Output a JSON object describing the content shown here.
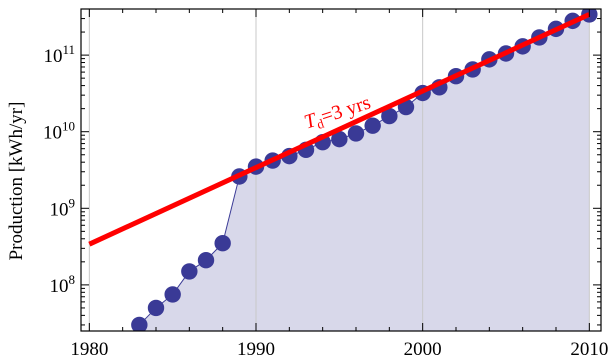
{
  "chart_data": {
    "type": "line",
    "title": "",
    "xlabel": "",
    "ylabel": "Production [kWh/yr]",
    "xlim": [
      1979.5,
      2010.7
    ],
    "ylim": [
      25000000,
      400000000000
    ],
    "y_scale": "log",
    "grid": "vertical lines at 1990 and 2000",
    "x_ticks": [
      {
        "value": 1980,
        "label": "1980"
      },
      {
        "value": 1990,
        "label": "1990"
      },
      {
        "value": 2000,
        "label": "2000"
      },
      {
        "value": 2010,
        "label": "2010"
      }
    ],
    "y_ticks": [
      {
        "value": 100000000,
        "base": "10",
        "exp": "8"
      },
      {
        "value": 1000000000,
        "base": "10",
        "exp": "9"
      },
      {
        "value": 10000000000,
        "base": "10",
        "exp": "10"
      },
      {
        "value": 100000000000,
        "base": "10",
        "exp": "11"
      }
    ],
    "series": [
      {
        "type": "line-markers-filled-area",
        "color": "#3a3a96",
        "fill": "#d8d8ea",
        "x": [
          1983,
          1984,
          1985,
          1986,
          1987,
          1988,
          1989,
          1990,
          1991,
          1992,
          1993,
          1994,
          1995,
          1996,
          1997,
          1998,
          1999,
          2000,
          2001,
          2002,
          2003,
          2004,
          2005,
          2006,
          2007,
          2008,
          2009,
          2010
        ],
        "y": [
          30000000,
          50000000,
          75000000,
          150000000,
          210000000,
          350000000,
          2600000000,
          3500000000,
          4200000000,
          4800000000,
          5800000000,
          7300000000,
          8000000000,
          9500000000,
          12000000000,
          16000000000,
          21000000000,
          32000000000,
          38000000000,
          53000000000,
          65000000000,
          88000000000,
          105000000000,
          130000000000,
          170000000000,
          220000000000,
          280000000000,
          340000000000
        ]
      },
      {
        "type": "trend-line",
        "color": "#ff0000",
        "x": [
          1980,
          2010
        ],
        "y": [
          340000000,
          340000000000
        ]
      }
    ],
    "annotations": [
      {
        "base": "T",
        "sub": "d",
        "rest": "=3 yrs",
        "color": "#ff0000",
        "x": 1995,
        "y": 15000000000,
        "rotate": -18
      }
    ]
  }
}
